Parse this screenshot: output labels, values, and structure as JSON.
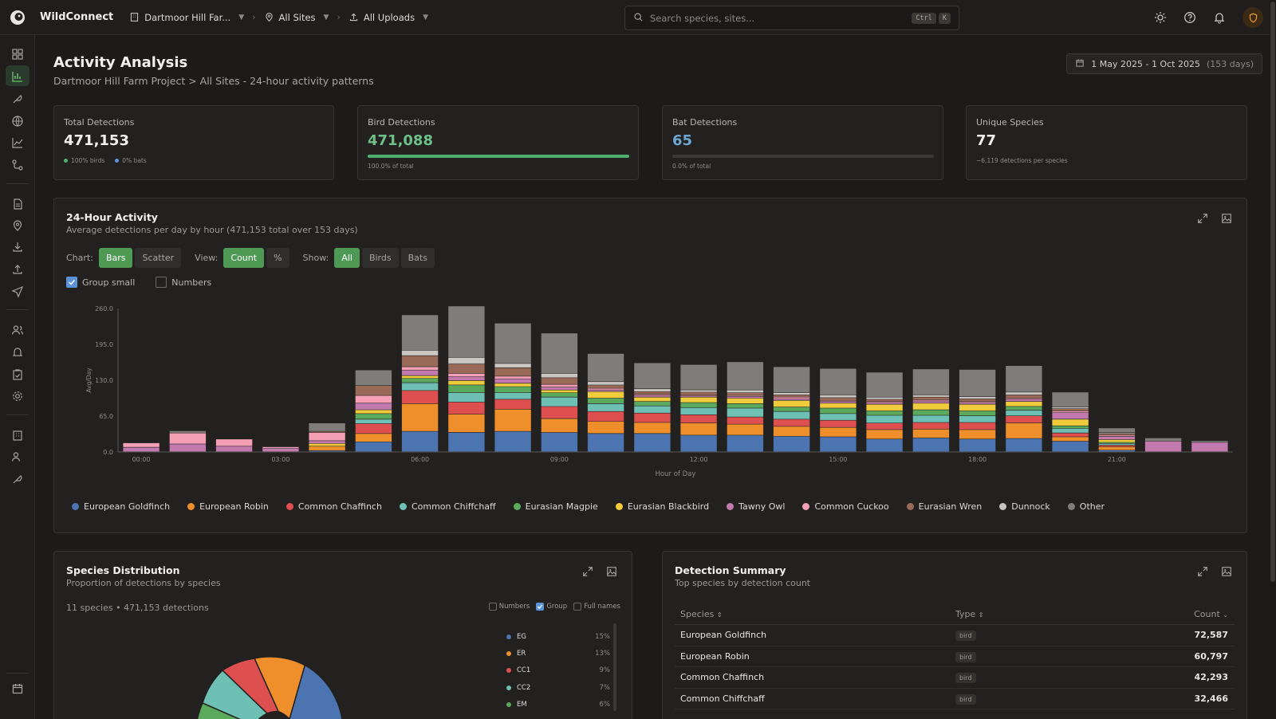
{
  "app": {
    "name": "WildConnect"
  },
  "topbar": {
    "project": "Dartmoor Hill Far...",
    "sites": "All Sites",
    "uploads": "All Uploads",
    "search_placeholder": "Search species, sites...",
    "kbd_ctrl": "Ctrl",
    "kbd_k": "K"
  },
  "page": {
    "title": "Activity Analysis",
    "subtitle": "Dartmoor Hill Farm Project > All Sites - 24-hour activity patterns",
    "date_range": "1 May 2025 - 1 Oct 2025",
    "date_days": "(153 days)"
  },
  "stats": {
    "total": {
      "label": "Total Detections",
      "value": "471,153",
      "birds_note": "100% birds",
      "bats_note": "0% bats"
    },
    "birds": {
      "label": "Bird Detections",
      "value": "471,088",
      "note": "100.0% of total",
      "fraction": 1.0
    },
    "bats": {
      "label": "Bat Detections",
      "value": "65",
      "note": "0.0% of total",
      "fraction": 0.0
    },
    "species": {
      "label": "Unique Species",
      "value": "77",
      "note": "~6,119 detections per species"
    }
  },
  "activity": {
    "title": "24-Hour Activity",
    "subtitle": "Average detections per day by hour (471,153 total over 153 days)",
    "chart_label": "Chart:",
    "chart_opts": [
      "Bars",
      "Scatter"
    ],
    "view_label": "View:",
    "view_opts": [
      "Count",
      "%"
    ],
    "show_label": "Show:",
    "show_opts": [
      "All",
      "Birds",
      "Bats"
    ],
    "group_small": "Group small",
    "numbers": "Numbers"
  },
  "chart_data": {
    "type": "bar",
    "stacked": true,
    "ylabel": "Avg/Day",
    "xlabel": "Hour of Day",
    "ylim": [
      0,
      260
    ],
    "yticks": [
      "0.0",
      "65.0",
      "130.0",
      "195.0",
      "260.0"
    ],
    "xtick_labels": [
      "00:00",
      "03:00",
      "06:00",
      "09:00",
      "12:00",
      "15:00",
      "18:00",
      "21:00"
    ],
    "categories": [
      "00:00",
      "01:00",
      "02:00",
      "03:00",
      "04:00",
      "05:00",
      "06:00",
      "07:00",
      "08:00",
      "09:00",
      "10:00",
      "11:00",
      "12:00",
      "13:00",
      "14:00",
      "15:00",
      "16:00",
      "17:00",
      "18:00",
      "19:00",
      "20:00",
      "21:00",
      "22:00",
      "23:00"
    ],
    "series": [
      {
        "name": "European Goldfinch",
        "color": "#4b74b0",
        "values": [
          0,
          0,
          0,
          0,
          2,
          18,
          37,
          35,
          37,
          35,
          33,
          33,
          30,
          30,
          28,
          27,
          23,
          25,
          23,
          24,
          19,
          3,
          0,
          0
        ]
      },
      {
        "name": "European Robin",
        "color": "#ef8f2c",
        "values": [
          0,
          0,
          0,
          0,
          8,
          15,
          50,
          33,
          40,
          25,
          22,
          20,
          22,
          20,
          18,
          17,
          17,
          16,
          17,
          28,
          8,
          6,
          0,
          0
        ]
      },
      {
        "name": "Common Chaffinch",
        "color": "#de4f50",
        "values": [
          0,
          0,
          0,
          0,
          0,
          18,
          24,
          22,
          18,
          22,
          18,
          17,
          15,
          13,
          13,
          13,
          12,
          12,
          13,
          13,
          7,
          3,
          0,
          0
        ]
      },
      {
        "name": "Common Chiffchaff",
        "color": "#6ec0b4",
        "values": [
          0,
          0,
          0,
          0,
          0,
          8,
          14,
          17,
          12,
          17,
          14,
          13,
          13,
          16,
          14,
          12,
          14,
          13,
          12,
          10,
          8,
          3,
          0,
          0
        ]
      },
      {
        "name": "Eurasian Magpie",
        "color": "#5aa95c",
        "values": [
          0,
          0,
          0,
          0,
          0,
          10,
          8,
          14,
          11,
          8,
          10,
          8,
          9,
          8,
          8,
          10,
          8,
          10,
          9,
          7,
          5,
          2,
          0,
          0
        ]
      },
      {
        "name": "Eurasian Blackbird",
        "color": "#f0cc3d",
        "values": [
          0,
          0,
          0,
          0,
          5,
          7,
          5,
          8,
          6,
          5,
          12,
          8,
          10,
          10,
          12,
          9,
          12,
          12,
          12,
          9,
          12,
          5,
          0,
          0
        ]
      },
      {
        "name": "Tawny Owl",
        "color": "#c27aae",
        "values": [
          8,
          14,
          10,
          6,
          5,
          12,
          10,
          7,
          8,
          5,
          3,
          3,
          2,
          3,
          3,
          3,
          3,
          4,
          3,
          4,
          12,
          6,
          19,
          17
        ]
      },
      {
        "name": "Common Cuckoo",
        "color": "#f59fb4",
        "values": [
          8,
          20,
          13,
          3,
          15,
          14,
          6,
          6,
          5,
          5,
          3,
          2,
          2,
          2,
          3,
          2,
          2,
          2,
          2,
          2,
          3,
          2,
          0,
          0
        ]
      },
      {
        "name": "Eurasian Wren",
        "color": "#9a6a58",
        "values": [
          0,
          0,
          0,
          0,
          2,
          18,
          20,
          17,
          15,
          12,
          6,
          5,
          5,
          5,
          4,
          5,
          4,
          5,
          5,
          6,
          4,
          3,
          0,
          0
        ]
      },
      {
        "name": "Dunnock",
        "color": "#c9c6c1",
        "values": [
          0,
          0,
          0,
          0,
          0,
          0,
          10,
          12,
          8,
          8,
          6,
          5,
          4,
          5,
          4,
          5,
          4,
          4,
          4,
          5,
          3,
          2,
          0,
          0
        ]
      },
      {
        "name": "Other",
        "color": "#7f7d79",
        "values": [
          0,
          4,
          0,
          0,
          15,
          28,
          64,
          93,
          73,
          73,
          51,
          47,
          46,
          51,
          47,
          48,
          45,
          47,
          49,
          48,
          27,
          8,
          6,
          3
        ]
      }
    ]
  },
  "pie_card": {
    "title": "Species Distribution",
    "subtitle": "Proportion of detections by species",
    "meta": "11 species • 471,153 detections",
    "opt_numbers": "Numbers",
    "opt_group": "Group",
    "opt_fullnames": "Full names",
    "legend": [
      {
        "abbr": "EG",
        "pct": "15%",
        "color": "#4b74b0"
      },
      {
        "abbr": "ER",
        "pct": "13%",
        "color": "#ef8f2c"
      },
      {
        "abbr": "CC1",
        "pct": "9%",
        "color": "#de4f50"
      },
      {
        "abbr": "CC2",
        "pct": "7%",
        "color": "#6ec0b4"
      },
      {
        "abbr": "EM",
        "pct": "6%",
        "color": "#5aa95c"
      }
    ]
  },
  "summary": {
    "title": "Detection Summary",
    "subtitle": "Top species by detection count",
    "col_species": "Species",
    "col_type": "Type",
    "col_count": "Count",
    "rows": [
      {
        "species": "European Goldfinch",
        "type": "bird",
        "count": "72,587"
      },
      {
        "species": "European Robin",
        "type": "bird",
        "count": "60,797"
      },
      {
        "species": "Common Chaffinch",
        "type": "bird",
        "count": "42,293"
      },
      {
        "species": "Common Chiffchaff",
        "type": "bird",
        "count": "32,466"
      }
    ]
  }
}
